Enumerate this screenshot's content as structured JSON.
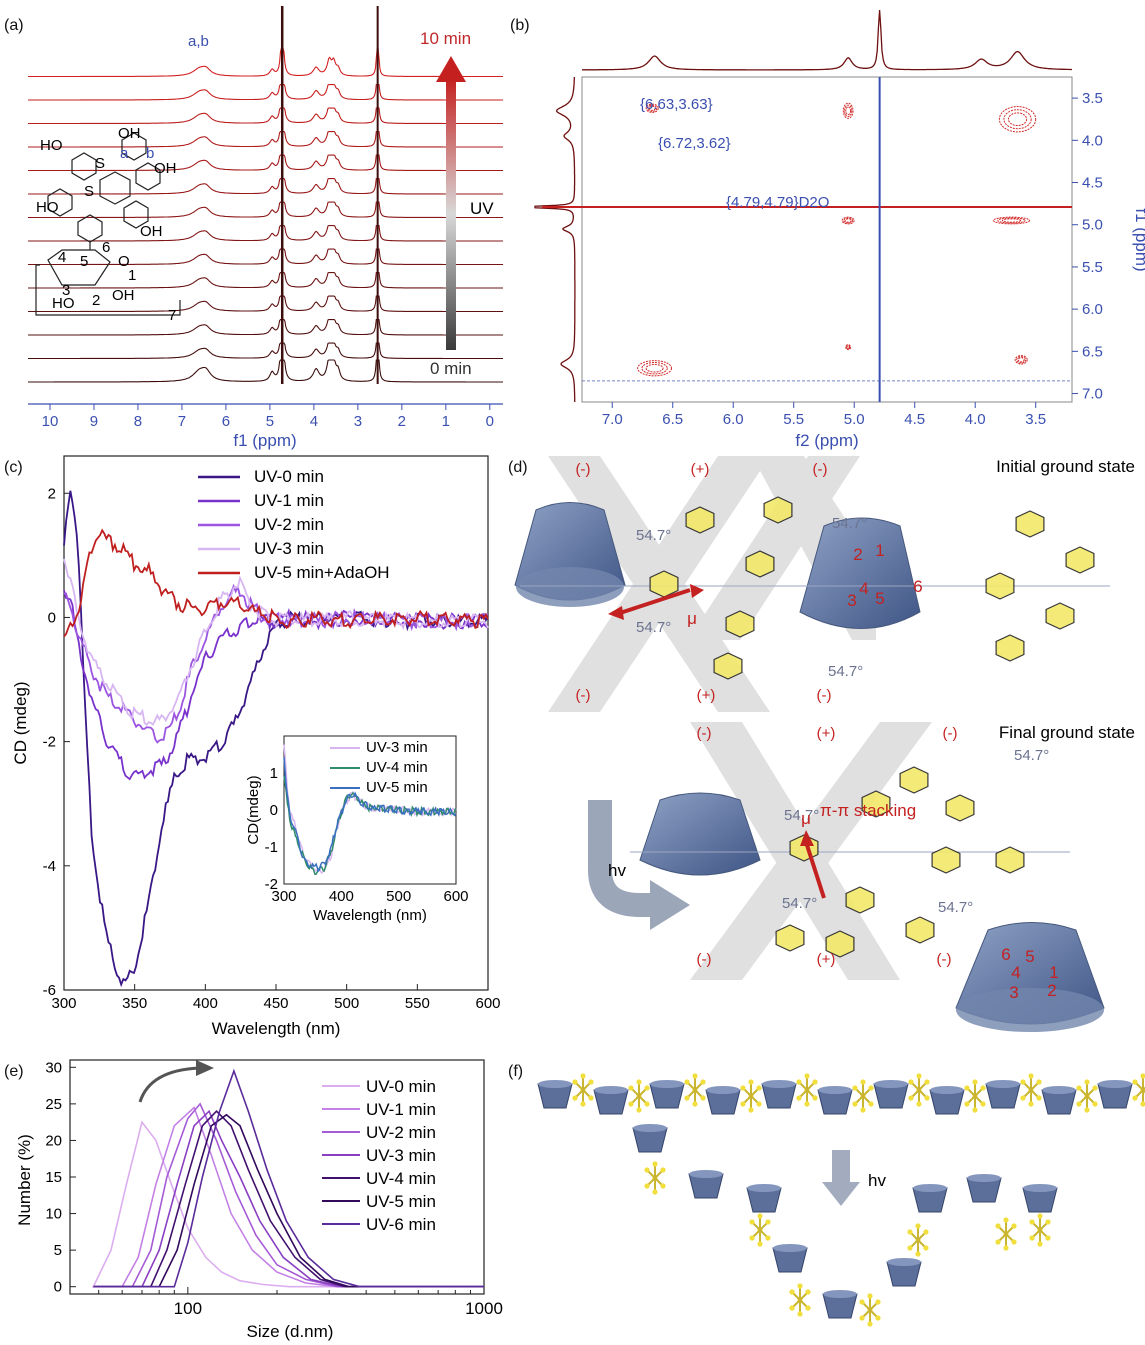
{
  "panels": {
    "a": {
      "label": "(a)",
      "xlabel": "f1 (ppm)",
      "xticks": [
        "10",
        "9",
        "8",
        "7",
        "6",
        "5",
        "4",
        "3",
        "2",
        "1",
        "0"
      ],
      "time_top": "10 min",
      "time_bottom": "0 min",
      "uv": "UV",
      "peak_label": "a,b",
      "molecule_labels": [
        "HO",
        "OH",
        "S",
        "OH",
        "HO",
        "OH",
        "S",
        "a",
        "b",
        "6",
        "5",
        "4",
        "3",
        "2",
        "1",
        "O",
        "HO",
        "OH",
        "7"
      ]
    },
    "b": {
      "label": "(b)",
      "xlabel": "f2 (ppm)",
      "ylabel": "f1 (ppm)",
      "xticks": [
        "7.0",
        "6.5",
        "6.0",
        "5.5",
        "5.0",
        "4.5",
        "4.0",
        "3.5"
      ],
      "yticks": [
        "3.5",
        "4.0",
        "4.5",
        "5.0",
        "5.5",
        "6.0",
        "6.5",
        "7.0"
      ],
      "annotations": [
        "{6.63,3.63}",
        "{6.72,3.62}",
        "{4.79,4.79}D2O"
      ]
    },
    "c": {
      "label": "(c)",
      "inset_xlabel": "Wavelength (nm)",
      "inset_ylabel": "CD(mdeg)",
      "inset_xticks": [
        "300",
        "400",
        "500",
        "600"
      ],
      "inset_yticks": [
        "1",
        "0",
        "-1",
        "-2"
      ]
    },
    "d": {
      "label": "(d)",
      "title_top": "Initial ground state",
      "title_bottom": "Final ground state",
      "angle": "54.7°",
      "mu": "μ",
      "stacking": "π-π stacking",
      "hv": "hv",
      "plus": "(+)",
      "minus": "(-)"
    },
    "e": {
      "label": "(e)"
    },
    "f": {
      "label": "(f)",
      "hv": "hv"
    }
  },
  "colors": {
    "nmr_dark": "#3b0d0d",
    "nmr_red": "#d42020",
    "axis_blue": "#3a4fb0",
    "cd_colors": [
      "#3a1786",
      "#7a32cc",
      "#9c55e0",
      "#d7b6f2",
      "#c01f1f"
    ],
    "dls_colors": [
      "#dcaef0",
      "#c480e6",
      "#a65bd6",
      "#8a3fc2",
      "#42116e",
      "#33095c",
      "#5a2b9a"
    ],
    "cyclodextrin": "#5b6f9a",
    "azo_yellow": "#e8d83a"
  },
  "chart_data": [
    {
      "panel": "c",
      "type": "line",
      "title": "",
      "xlabel": "Wavelength (nm)",
      "ylabel": "CD (mdeg)",
      "xlim": [
        300,
        600
      ],
      "ylim": [
        -6,
        2.6
      ],
      "xticks": [
        300,
        350,
        400,
        450,
        500,
        550,
        600
      ],
      "yticks": [
        -6,
        -4,
        -2,
        0,
        2
      ],
      "legend": "top-right",
      "series": [
        {
          "name": "UV-0 min",
          "x": [
            300,
            305,
            310,
            315,
            320,
            330,
            340,
            345,
            350,
            360,
            370,
            380,
            390,
            400,
            410,
            420,
            430,
            440,
            450,
            460,
            470,
            480,
            500,
            550,
            600
          ],
          "values": [
            1.2,
            2.2,
            1.2,
            -1.5,
            -3.6,
            -5.1,
            -5.8,
            -5.8,
            -5.6,
            -4.5,
            -3.2,
            -2.4,
            -2.2,
            -2.2,
            -2.0,
            -1.7,
            -1.1,
            -0.5,
            -0.1,
            0.05,
            0.0,
            0.05,
            0.05,
            0.0,
            0.0
          ]
        },
        {
          "name": "UV-1 min",
          "x": [
            300,
            305,
            310,
            320,
            330,
            340,
            350,
            360,
            370,
            380,
            390,
            400,
            410,
            420,
            430,
            440,
            450,
            460,
            480,
            500,
            550,
            600
          ],
          "values": [
            0.5,
            0.3,
            -0.4,
            -1.3,
            -1.9,
            -2.3,
            -2.5,
            -2.4,
            -2.3,
            -1.9,
            -1.2,
            -0.6,
            -0.3,
            -0.15,
            -0.05,
            0.0,
            0.0,
            0.05,
            0.0,
            0.05,
            0.0,
            0.0
          ]
        },
        {
          "name": "UV-2 min",
          "x": [
            300,
            305,
            310,
            320,
            330,
            340,
            350,
            360,
            370,
            380,
            390,
            400,
            410,
            420,
            425,
            430,
            440,
            450,
            460,
            480,
            500,
            550,
            600
          ],
          "values": [
            0.4,
            0.2,
            -0.2,
            -0.8,
            -1.2,
            -1.4,
            -1.6,
            -1.8,
            -1.9,
            -1.5,
            -0.8,
            -0.3,
            0.2,
            0.45,
            0.5,
            0.3,
            0.1,
            0.0,
            0.05,
            0.0,
            0.05,
            0.0,
            0.0
          ]
        },
        {
          "name": "UV-3 min",
          "x": [
            300,
            305,
            310,
            320,
            330,
            340,
            350,
            360,
            370,
            380,
            390,
            400,
            410,
            420,
            425,
            430,
            440,
            450,
            460,
            480,
            500,
            550,
            600
          ],
          "values": [
            1.1,
            0.6,
            0.0,
            -0.6,
            -1.0,
            -1.3,
            -1.5,
            -1.6,
            -1.6,
            -1.3,
            -0.7,
            -0.2,
            0.3,
            0.55,
            0.6,
            0.35,
            0.1,
            0.0,
            0.05,
            0.0,
            0.05,
            0.0,
            0.0
          ]
        },
        {
          "name": "UV-5 min+AdaOH",
          "x": [
            300,
            305,
            310,
            320,
            325,
            330,
            340,
            350,
            360,
            370,
            380,
            390,
            400,
            410,
            420,
            430,
            440,
            450,
            460,
            480,
            500,
            550,
            600
          ],
          "values": [
            -0.3,
            -0.1,
            0.2,
            1.2,
            1.4,
            1.3,
            1.2,
            0.9,
            0.8,
            0.5,
            0.3,
            0.2,
            0.2,
            0.3,
            0.3,
            0.2,
            0.1,
            0.05,
            0.0,
            0.05,
            0.0,
            0.05,
            0.0
          ]
        }
      ]
    },
    {
      "panel": "c-inset",
      "type": "line",
      "xlim": [
        300,
        600
      ],
      "ylim": [
        -2,
        2
      ],
      "legend": "top-right",
      "series": [
        {
          "name": "UV-3 min",
          "x": [
            300,
            305,
            310,
            320,
            330,
            340,
            350,
            360,
            370,
            380,
            390,
            400,
            410,
            420,
            430,
            450,
            500,
            550,
            600
          ],
          "values": [
            1.8,
            0.8,
            0.0,
            -0.4,
            -1.0,
            -1.3,
            -1.5,
            -1.6,
            -1.6,
            -1.3,
            -0.6,
            0.0,
            0.3,
            0.5,
            0.3,
            0.1,
            0.05,
            0.0,
            0.0
          ]
        },
        {
          "name": "UV-4 min",
          "x": [
            300,
            305,
            310,
            320,
            330,
            340,
            350,
            360,
            370,
            380,
            390,
            400,
            410,
            420,
            430,
            450,
            500,
            550,
            600
          ],
          "values": [
            1.0,
            0.3,
            -0.2,
            -0.7,
            -1.1,
            -1.4,
            -1.6,
            -1.6,
            -1.5,
            -1.2,
            -0.6,
            0.0,
            0.4,
            0.5,
            0.3,
            0.1,
            0.05,
            0.0,
            0.0
          ]
        },
        {
          "name": "UV-5 min",
          "x": [
            300,
            305,
            310,
            320,
            330,
            340,
            350,
            360,
            370,
            380,
            390,
            400,
            410,
            420,
            430,
            450,
            500,
            550,
            600
          ],
          "values": [
            1.5,
            0.5,
            -0.1,
            -0.5,
            -1.1,
            -1.4,
            -1.5,
            -1.5,
            -1.4,
            -1.1,
            -0.5,
            0.0,
            0.35,
            0.5,
            0.3,
            0.1,
            0.05,
            0.0,
            0.0
          ]
        }
      ]
    },
    {
      "panel": "e",
      "type": "line",
      "title": "",
      "xlabel": "Size (d.nm)",
      "ylabel": "Number (%)",
      "xscale": "log",
      "xlim": [
        40,
        1000
      ],
      "ylim": [
        -1,
        31
      ],
      "xticks": [
        100,
        1000
      ],
      "yticks": [
        0,
        5,
        10,
        15,
        20,
        25,
        30
      ],
      "legend": "right",
      "series": [
        {
          "name": "UV-0 min",
          "x": [
            48,
            55,
            62,
            70,
            78,
            88,
            100,
            115,
            130,
            150,
            180,
            220,
            300,
            1000
          ],
          "values": [
            0,
            5,
            14,
            22.5,
            20,
            14,
            8,
            4,
            2,
            0.8,
            0.3,
            0,
            0,
            0
          ]
        },
        {
          "name": "UV-1 min",
          "x": [
            60,
            68,
            78,
            90,
            105,
            120,
            140,
            165,
            200,
            250,
            320,
            1000
          ],
          "values": [
            0,
            4,
            14,
            22,
            24.5,
            18,
            10,
            5,
            2,
            0.5,
            0,
            0
          ]
        },
        {
          "name": "UV-2 min",
          "x": [
            65,
            75,
            85,
            100,
            110,
            125,
            145,
            170,
            200,
            250,
            320,
            1000
          ],
          "values": [
            0,
            5,
            15,
            23,
            25,
            20,
            13,
            7,
            3,
            1,
            0,
            0
          ]
        },
        {
          "name": "UV-3 min",
          "x": [
            70,
            80,
            92,
            105,
            118,
            130,
            150,
            175,
            210,
            260,
            330,
            1000
          ],
          "values": [
            0,
            5,
            14,
            22,
            24,
            20,
            15,
            9,
            4,
            1,
            0,
            0
          ]
        },
        {
          "name": "UV-4 min",
          "x": [
            75,
            85,
            98,
            112,
            125,
            140,
            160,
            190,
            230,
            280,
            340,
            1000
          ],
          "values": [
            0,
            5,
            14,
            22,
            24,
            22,
            16,
            9,
            4,
            1,
            0,
            0
          ]
        },
        {
          "name": "UV-5 min",
          "x": [
            80,
            92,
            105,
            120,
            135,
            150,
            172,
            200,
            240,
            290,
            350,
            1000
          ],
          "values": [
            0,
            5,
            14,
            22,
            23.5,
            22,
            16,
            10,
            4,
            1,
            0,
            0
          ]
        },
        {
          "name": "UV-6 min",
          "x": [
            90,
            100,
            112,
            128,
            143,
            160,
            185,
            215,
            255,
            310,
            380,
            1000
          ],
          "values": [
            0,
            6,
            15,
            24,
            29.5,
            24,
            16,
            9,
            4,
            1,
            0,
            0
          ]
        }
      ]
    }
  ]
}
